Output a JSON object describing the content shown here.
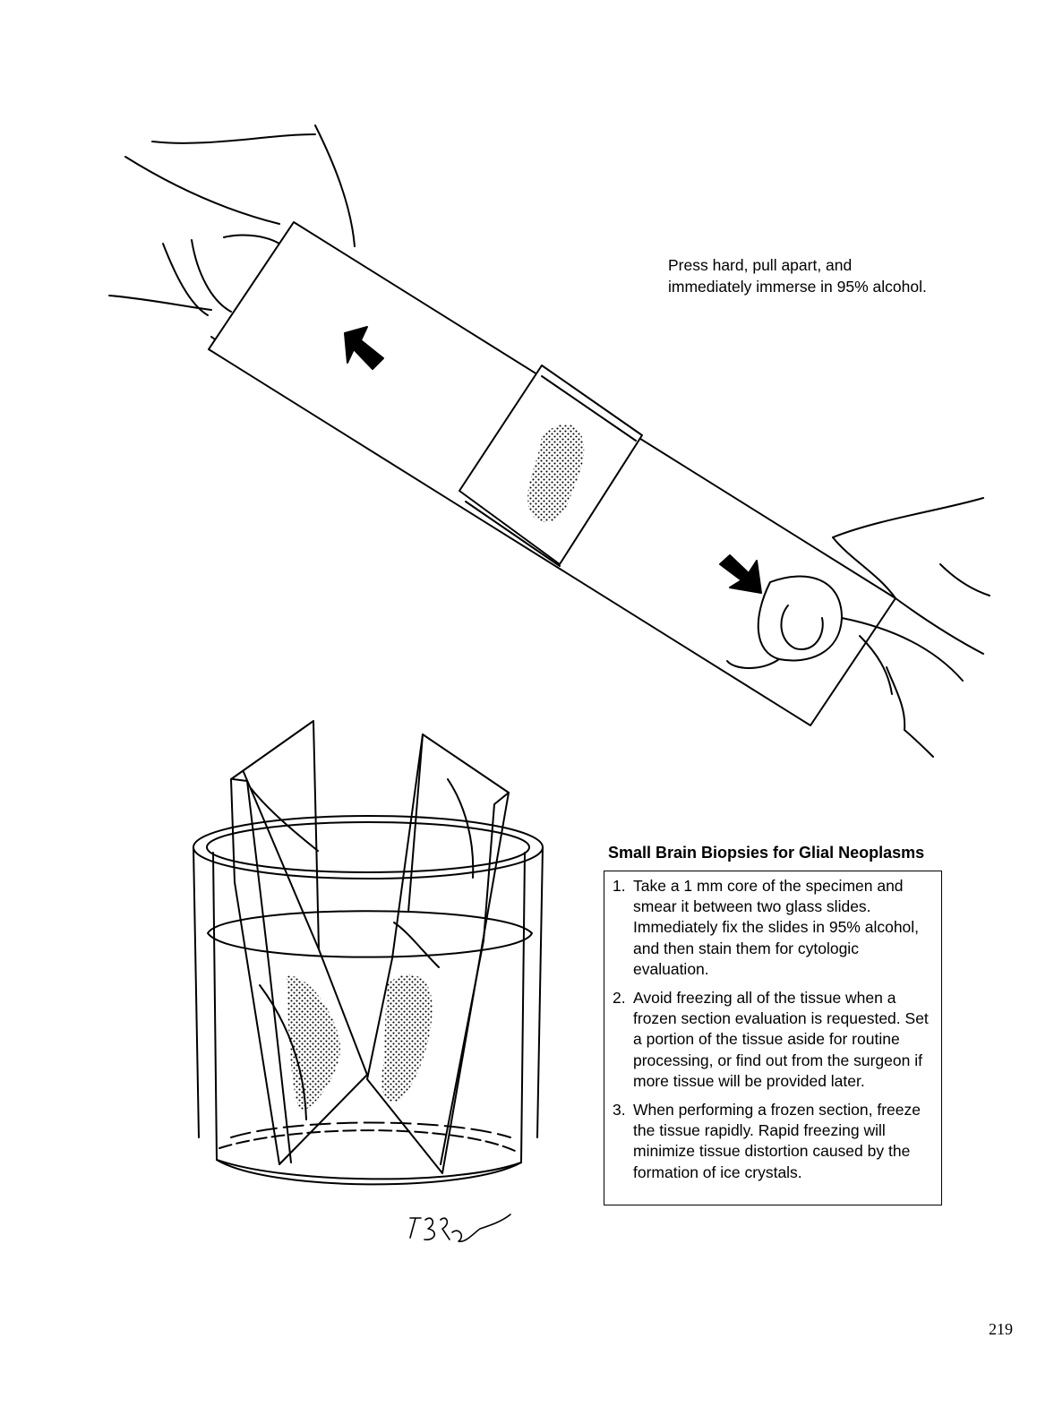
{
  "illustration": {
    "caption": "Press hard, pull apart, and immediately immerse in 95% alcohol."
  },
  "tips_box": {
    "title": "Small Brain Biopsies for Glial Neoplasms",
    "items": [
      {
        "number": "1.",
        "text": "Take a 1 mm core of the specimen and smear it between two glass slides. Immediately fix the slides in 95% alcohol, and then stain them for cytologic evaluation."
      },
      {
        "number": "2.",
        "text": "Avoid freezing all of the tissue when a frozen section evaluation is requested. Set a portion of the tissue aside for routine processing, or find out from the surgeon if more tissue will be provided later."
      },
      {
        "number": "3.",
        "text": "When performing a frozen section, freeze the tissue rapidly. Rapid freezing will minimize tissue distortion caused by the formation of ice crystals."
      }
    ]
  },
  "page_number": "219"
}
